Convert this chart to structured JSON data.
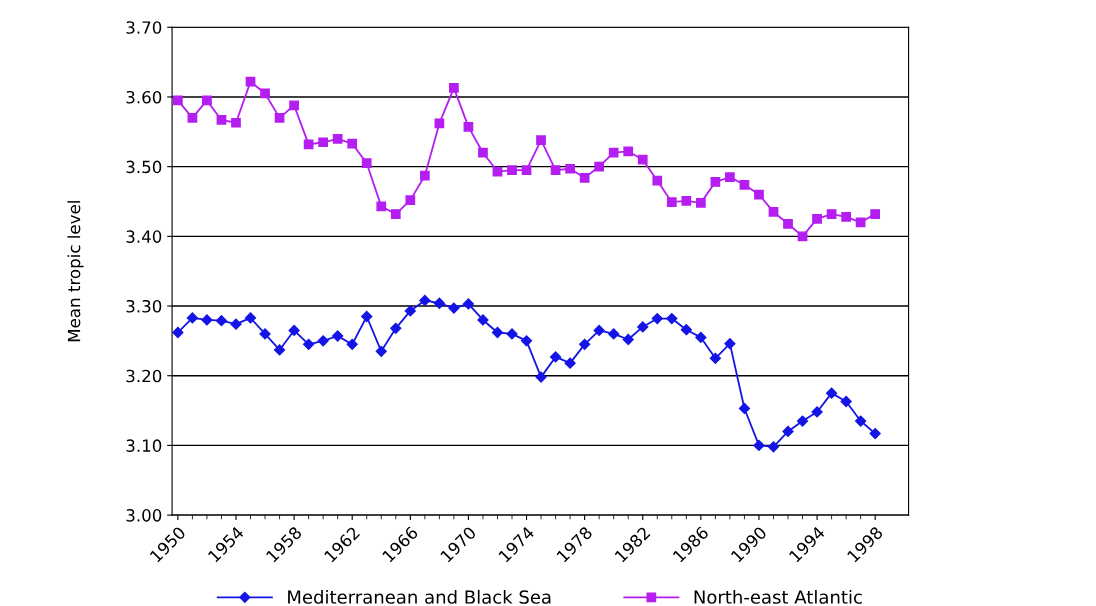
{
  "chart_data": {
    "type": "line",
    "ylabel": "Mean tropic level",
    "x": [
      1950,
      1951,
      1952,
      1953,
      1954,
      1955,
      1956,
      1957,
      1958,
      1959,
      1960,
      1961,
      1962,
      1963,
      1964,
      1965,
      1966,
      1967,
      1968,
      1969,
      1970,
      1971,
      1972,
      1973,
      1974,
      1975,
      1976,
      1977,
      1978,
      1979,
      1980,
      1981,
      1982,
      1983,
      1984,
      1985,
      1986,
      1987,
      1988,
      1989,
      1990,
      1991,
      1992,
      1993,
      1994,
      1995,
      1996,
      1997,
      1998
    ],
    "series": [
      {
        "name": "Mediterranean and Black Sea",
        "color": "#1414e6",
        "marker": "diamond",
        "values": [
          3.262,
          3.283,
          3.28,
          3.279,
          3.274,
          3.283,
          3.26,
          3.237,
          3.265,
          3.245,
          3.25,
          3.257,
          3.245,
          3.285,
          3.235,
          3.268,
          3.293,
          3.308,
          3.304,
          3.297,
          3.303,
          3.28,
          3.262,
          3.26,
          3.25,
          3.198,
          3.227,
          3.218,
          3.245,
          3.265,
          3.26,
          3.252,
          3.27,
          3.282,
          3.282,
          3.266,
          3.255,
          3.225,
          3.246,
          3.153,
          3.1,
          3.098,
          3.12,
          3.135,
          3.148,
          3.175,
          3.163,
          3.135,
          3.117
        ]
      },
      {
        "name": "North-east Atlantic",
        "color": "#b41ef0",
        "marker": "square",
        "values": [
          3.595,
          3.57,
          3.595,
          3.567,
          3.563,
          3.622,
          3.605,
          3.57,
          3.588,
          3.532,
          3.535,
          3.54,
          3.533,
          3.505,
          3.443,
          3.432,
          3.452,
          3.487,
          3.562,
          3.613,
          3.557,
          3.52,
          3.493,
          3.495,
          3.495,
          3.538,
          3.495,
          3.497,
          3.484,
          3.5,
          3.52,
          3.522,
          3.51,
          3.48,
          3.449,
          3.451,
          3.448,
          3.478,
          3.485,
          3.474,
          3.46,
          3.435,
          3.418,
          3.4,
          3.425,
          3.432,
          3.428,
          3.42,
          3.432
        ]
      }
    ],
    "xlim": [
      1949.6,
      2000.3
    ],
    "xticks": [
      1950,
      1954,
      1958,
      1962,
      1966,
      1970,
      1974,
      1978,
      1982,
      1986,
      1990,
      1994,
      1998
    ],
    "ylim": [
      3.0,
      3.7
    ],
    "yticks": [
      {
        "value": 3.0,
        "label": "3.00"
      },
      {
        "value": 3.1,
        "label": "3.10"
      },
      {
        "value": 3.2,
        "label": "3.20"
      },
      {
        "value": 3.3,
        "label": "3.30"
      },
      {
        "value": 3.4,
        "label": "3.40"
      },
      {
        "value": 3.5,
        "label": "3.50"
      },
      {
        "value": 3.6,
        "label": "3.60"
      },
      {
        "value": 3.7,
        "label": "3.70"
      }
    ],
    "grid": "y",
    "legend": "bottom",
    "line_style": "solid"
  }
}
